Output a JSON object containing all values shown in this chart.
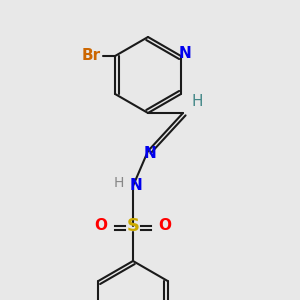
{
  "background_color": "#e8e8e8",
  "bond_color": "#1a1a1a",
  "bond_width": 1.5,
  "figsize": [
    3.0,
    3.0
  ],
  "dpi": 100,
  "colors": {
    "N": "#0000ee",
    "Br": "#cc6600",
    "S": "#ccaa00",
    "O": "#ff0000",
    "H": "#448888",
    "H_gray": "#888888",
    "C": "#1a1a1a"
  }
}
